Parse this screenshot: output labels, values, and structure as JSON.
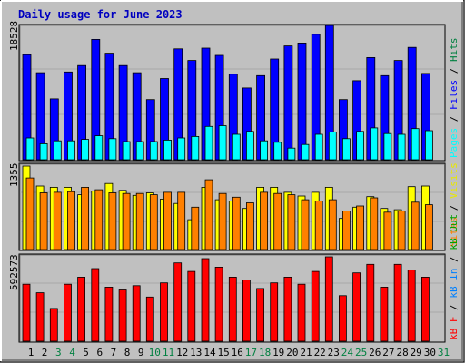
{
  "title": "Daily usage for June 2023",
  "colors": {
    "background": "#c0c0c0",
    "title": "#0000c0",
    "pages": "#0000ff",
    "files": "#00ffff",
    "hits": "#008040",
    "sites": "#ff8000",
    "visits": "#ffff00",
    "kb_f": "#ff0000",
    "kb_in": "#0080ff",
    "kb_out": "#00a000",
    "weekend_day": "#008040",
    "weekday_day": "#000000"
  },
  "panels": {
    "hits": {
      "max_label": "18528",
      "legend": [
        "Pages",
        "Files",
        "Hits"
      ]
    },
    "visits": {
      "max_label": "1355",
      "legend": [
        "Sites",
        "Visits"
      ]
    },
    "kbytes": {
      "max_label": "592573",
      "legend": [
        "kB F",
        "kB In",
        "kB Out"
      ]
    }
  },
  "chart_data": [
    {
      "type": "bar",
      "title": "Daily usage for June 2023",
      "categories": [
        "1",
        "2",
        "3",
        "4",
        "5",
        "6",
        "7",
        "8",
        "9",
        "10",
        "11",
        "12",
        "13",
        "14",
        "15",
        "16",
        "17",
        "18",
        "19",
        "20",
        "21",
        "22",
        "23",
        "24",
        "25",
        "26",
        "27",
        "28",
        "29",
        "30",
        "31"
      ],
      "weekend_days": [
        "3",
        "4",
        "10",
        "11",
        "17",
        "18",
        "24",
        "25",
        "31"
      ],
      "ylim": [
        0,
        18528
      ],
      "series": [
        {
          "name": "Hits",
          "values": [
            14500,
            12000,
            8400,
            12100,
            13000,
            16600,
            14700,
            13000,
            12000,
            8300,
            11200,
            15300,
            13700,
            15400,
            14400,
            11800,
            9900,
            11600,
            13900,
            15700,
            16100,
            17300,
            18528,
            8300,
            10900,
            14100,
            11600,
            13700,
            15500,
            11900,
            0
          ]
        },
        {
          "name": "Files",
          "values": [
            3000,
            2200,
            2600,
            2600,
            2800,
            3300,
            2900,
            2500,
            2500,
            2500,
            2700,
            3000,
            3200,
            4600,
            4700,
            3500,
            3900,
            2600,
            2400,
            1600,
            2100,
            3500,
            3800,
            2900,
            3900,
            4400,
            3600,
            3500,
            4300,
            4000,
            0
          ]
        },
        {
          "name": "Pages",
          "values": [
            0,
            0,
            0,
            0,
            0,
            0,
            0,
            0,
            0,
            0,
            0,
            0,
            0,
            0,
            0,
            0,
            0,
            0,
            0,
            0,
            0,
            0,
            0,
            0,
            0,
            0,
            0,
            0,
            0,
            0,
            0
          ]
        }
      ]
    },
    {
      "type": "bar",
      "categories": [
        "1",
        "2",
        "3",
        "4",
        "5",
        "6",
        "7",
        "8",
        "9",
        "10",
        "11",
        "12",
        "13",
        "14",
        "15",
        "16",
        "17",
        "18",
        "19",
        "20",
        "21",
        "22",
        "23",
        "24",
        "25",
        "26",
        "27",
        "28",
        "29",
        "30",
        "31"
      ],
      "ylim": [
        0,
        1355
      ],
      "series": [
        {
          "name": "Visits",
          "values": [
            1340,
            1020,
            1000,
            1000,
            880,
            940,
            1060,
            950,
            870,
            910,
            810,
            740,
            480,
            1000,
            800,
            780,
            660,
            1000,
            1000,
            920,
            860,
            920,
            1000,
            500,
            680,
            850,
            660,
            640,
            1010,
            1020,
            0
          ]
        },
        {
          "name": "Sites",
          "values": [
            1150,
            910,
            920,
            930,
            1000,
            960,
            910,
            900,
            900,
            880,
            920,
            920,
            680,
            1120,
            900,
            840,
            750,
            920,
            900,
            880,
            800,
            780,
            800,
            620,
            700,
            830,
            600,
            620,
            760,
            720,
            0
          ]
        }
      ]
    },
    {
      "type": "bar",
      "categories": [
        "1",
        "2",
        "3",
        "4",
        "5",
        "6",
        "7",
        "8",
        "9",
        "10",
        "11",
        "12",
        "13",
        "14",
        "15",
        "16",
        "17",
        "18",
        "19",
        "20",
        "21",
        "22",
        "23",
        "24",
        "25",
        "26",
        "27",
        "28",
        "29",
        "30",
        "31"
      ],
      "ylim": [
        0,
        592573
      ],
      "series": [
        {
          "name": "kB F",
          "values": [
            400000,
            340000,
            230000,
            400000,
            450000,
            510000,
            380000,
            360000,
            390000,
            310000,
            410000,
            550000,
            490000,
            580000,
            520000,
            450000,
            430000,
            370000,
            410000,
            450000,
            400000,
            490000,
            592573,
            320000,
            480000,
            540000,
            380000,
            540000,
            500000,
            450000,
            0
          ]
        },
        {
          "name": "kB In",
          "values": [
            0,
            0,
            0,
            0,
            0,
            0,
            0,
            0,
            0,
            0,
            0,
            0,
            0,
            0,
            0,
            0,
            0,
            0,
            0,
            0,
            0,
            0,
            0,
            0,
            0,
            0,
            0,
            0,
            0,
            0,
            0
          ]
        },
        {
          "name": "kB Out",
          "values": [
            0,
            0,
            0,
            0,
            0,
            0,
            0,
            0,
            0,
            0,
            0,
            0,
            0,
            0,
            0,
            0,
            0,
            0,
            0,
            0,
            0,
            0,
            0,
            0,
            0,
            0,
            0,
            0,
            0,
            0,
            0
          ]
        }
      ]
    }
  ]
}
